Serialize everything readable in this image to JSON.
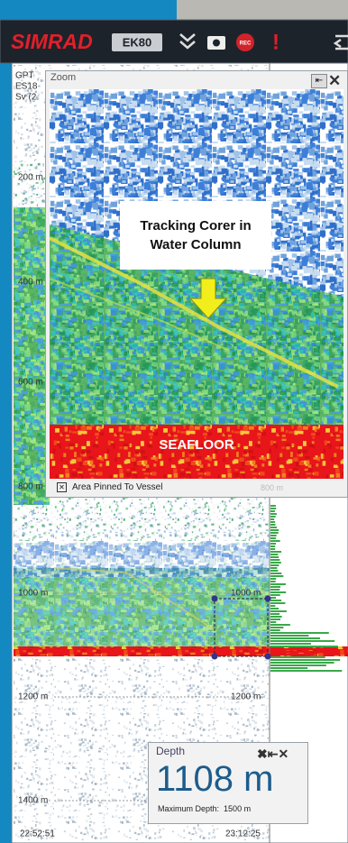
{
  "toolbar": {
    "brand": "SIMRAD",
    "model": "EK80",
    "rec": "REC",
    "alert": "!"
  },
  "echogram": {
    "info": [
      "GPT",
      "ES18",
      "Sv (2"
    ],
    "left_depth_labels": [
      "200 m",
      "400 m",
      "600 m",
      "800 m",
      "1000 m",
      "1200 m",
      "1400 m"
    ],
    "right_depth_labels": [
      "1000 m",
      "1200 m"
    ],
    "time_start": "22:52:51",
    "time_end": "23:12:25"
  },
  "zoom": {
    "title": "Zoom",
    "annotation": "Tracking Corer in Water Column",
    "seafloor": "SEAFLOOR",
    "pinned": "Area Pinned To Vessel",
    "depth_label": "800 m"
  },
  "depth": {
    "title": "Depth",
    "value": "1108 m",
    "max_label": "Maximum Depth:",
    "max_value": "1500 m"
  }
}
